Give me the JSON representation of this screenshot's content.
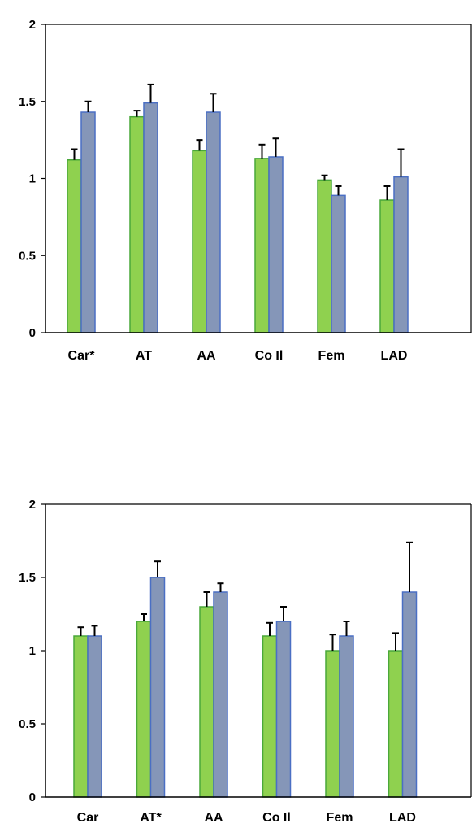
{
  "colors": {
    "series_a": "#8fd14f",
    "series_a_edge": "#4aa83a",
    "series_b": "#8596b8",
    "series_b_edge": "#4a6fc4",
    "axis": "#000000",
    "error": "#000000"
  },
  "chart_data": [
    {
      "type": "bar",
      "categories": [
        "Car*",
        "AT",
        "AA",
        "Co Il",
        "Fem",
        "LAD"
      ],
      "ylim": [
        0,
        2
      ],
      "yticks": [
        0,
        0.5,
        1,
        1.5,
        2
      ],
      "ytick_labels": [
        "0",
        "0.5",
        "1",
        "1.5",
        "2"
      ],
      "grid": false,
      "series": [
        {
          "color": "#8fd14f",
          "values": [
            1.12,
            1.4,
            1.18,
            1.13,
            0.99,
            0.86
          ],
          "errors": [
            0.07,
            0.04,
            0.07,
            0.09,
            0.03,
            0.09
          ]
        },
        {
          "color": "#8596b8",
          "values": [
            1.43,
            1.49,
            1.43,
            1.14,
            0.89,
            1.01
          ],
          "errors": [
            0.07,
            0.12,
            0.12,
            0.12,
            0.06,
            0.18
          ]
        }
      ]
    },
    {
      "type": "bar",
      "categories": [
        "Car",
        "AT*",
        "AA",
        "Co Il",
        "Fem",
        "LAD"
      ],
      "ylim": [
        0,
        2
      ],
      "yticks": [
        0,
        0.5,
        1,
        1.5,
        2
      ],
      "ytick_labels": [
        "0",
        "0.5",
        "1",
        "1.5",
        "2"
      ],
      "grid": false,
      "series": [
        {
          "color": "#8fd14f",
          "values": [
            1.1,
            1.2,
            1.3,
            1.1,
            1.0,
            1.0
          ],
          "errors": [
            0.06,
            0.05,
            0.1,
            0.09,
            0.11,
            0.12
          ]
        },
        {
          "color": "#8596b8",
          "values": [
            1.1,
            1.5,
            1.4,
            1.2,
            1.1,
            1.4
          ],
          "errors": [
            0.07,
            0.11,
            0.06,
            0.1,
            0.1,
            0.34
          ]
        }
      ]
    }
  ]
}
